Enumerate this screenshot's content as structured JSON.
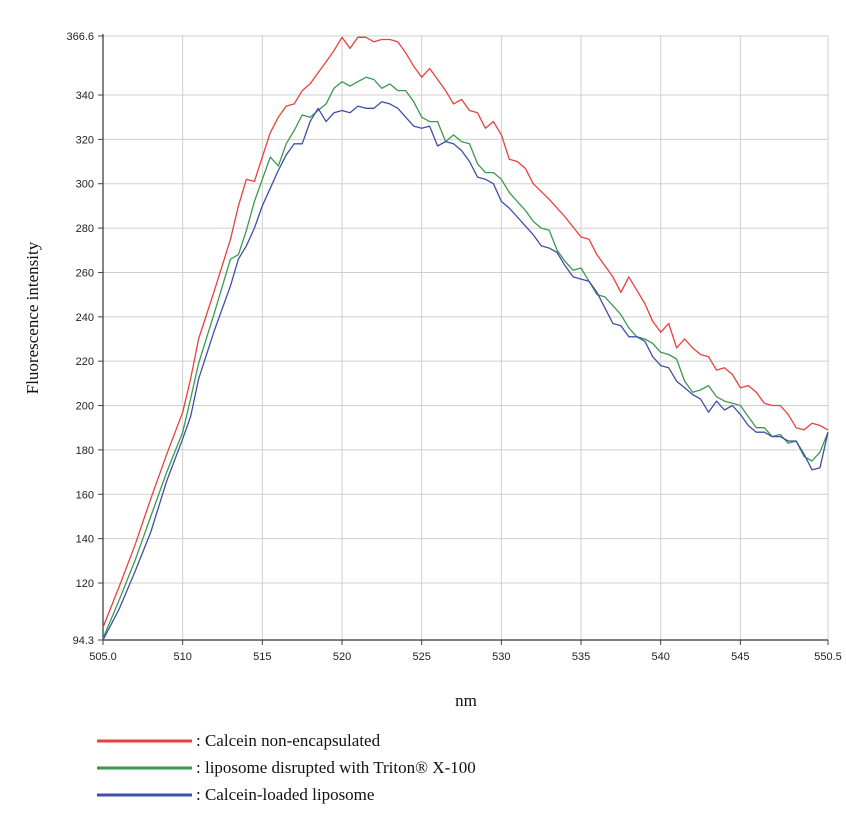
{
  "chart_data": {
    "type": "line",
    "xlabel": "nm",
    "ylabel": "Fluorescence intensity",
    "xlim": [
      505.0,
      550.5
    ],
    "ylim": [
      94.3,
      366.6
    ],
    "x_ticks": [
      {
        "value": 505.0,
        "label": "505.0"
      },
      {
        "value": 510,
        "label": "510"
      },
      {
        "value": 515,
        "label": "515"
      },
      {
        "value": 520,
        "label": "520"
      },
      {
        "value": 525,
        "label": "525"
      },
      {
        "value": 530,
        "label": "530"
      },
      {
        "value": 535,
        "label": "535"
      },
      {
        "value": 540,
        "label": "540"
      },
      {
        "value": 545,
        "label": "545"
      },
      {
        "value": 550.5,
        "label": "550.5"
      }
    ],
    "y_ticks": [
      {
        "value": 94.3,
        "label": "94.3"
      },
      {
        "value": 120,
        "label": "120"
      },
      {
        "value": 140,
        "label": "140"
      },
      {
        "value": 160,
        "label": "160"
      },
      {
        "value": 180,
        "label": "180"
      },
      {
        "value": 200,
        "label": "200"
      },
      {
        "value": 220,
        "label": "220"
      },
      {
        "value": 240,
        "label": "240"
      },
      {
        "value": 260,
        "label": "260"
      },
      {
        "value": 280,
        "label": "280"
      },
      {
        "value": 300,
        "label": "300"
      },
      {
        "value": 320,
        "label": "320"
      },
      {
        "value": 340,
        "label": "340"
      },
      {
        "value": 366.6,
        "label": "366.6"
      }
    ],
    "grid": true,
    "legend_position": "bottom-left",
    "series": [
      {
        "name": ": Calcein non-encapsulated",
        "color": "#e8413c",
        "x": [
          505,
          506,
          507,
          508,
          509,
          510,
          510.5,
          511,
          512,
          513,
          513.5,
          514,
          514.5,
          515,
          515.5,
          516,
          516.5,
          517,
          517.5,
          518,
          518.5,
          519,
          519.5,
          520,
          520.5,
          521,
          521.5,
          522,
          522.5,
          523,
          523.5,
          524,
          524.5,
          525,
          525.5,
          526,
          526.5,
          527,
          527.5,
          528,
          528.5,
          529,
          529.5,
          530,
          530.5,
          531,
          531.5,
          532,
          533,
          534,
          535,
          535.5,
          536,
          536.5,
          537,
          537.5,
          538,
          538.5,
          539,
          539.5,
          540,
          540.5,
          541,
          541.5,
          542,
          542.5,
          543,
          543.5,
          544,
          544.5,
          545,
          545.5,
          546,
          546.5,
          547,
          547.5,
          548,
          548.5,
          549,
          549.5,
          550,
          550.5
        ],
        "y": [
          100,
          118,
          137,
          158,
          178,
          197,
          212,
          230,
          252,
          275,
          290,
          302,
          301,
          312,
          323,
          330,
          335,
          336,
          342,
          345,
          350,
          355,
          360,
          366,
          361,
          366,
          366,
          364,
          365,
          365,
          364,
          359,
          353,
          348,
          352,
          347,
          342,
          336,
          338,
          333,
          332,
          325,
          328,
          322,
          311,
          310,
          307,
          300,
          293,
          285,
          276,
          275,
          268,
          263,
          258,
          251,
          258,
          252,
          246,
          238,
          233,
          237,
          226,
          230,
          226,
          223,
          222,
          216,
          217,
          214,
          208,
          209,
          206,
          201,
          200,
          200,
          196,
          190,
          189,
          192,
          191,
          189
        ]
      },
      {
        "name": ": liposome disrupted with Triton® X-100",
        "color": "#3a9a4e",
        "x": [
          505,
          506,
          507,
          508,
          509,
          510,
          510.5,
          511,
          512,
          513,
          513.5,
          514,
          514.5,
          515,
          515.5,
          516,
          516.5,
          517,
          517.5,
          518,
          518.5,
          519,
          519.5,
          520,
          520.5,
          521,
          521.5,
          522,
          522.5,
          523,
          523.5,
          524,
          524.5,
          525,
          525.5,
          526,
          526.5,
          527,
          527.5,
          528,
          528.5,
          529,
          529.5,
          530,
          530.5,
          531,
          531.5,
          532,
          532.5,
          533,
          533.5,
          534,
          534.5,
          535,
          535.5,
          536,
          536.5,
          537,
          537.5,
          538,
          538.5,
          539,
          539.5,
          540,
          540.5,
          541,
          541.5,
          542,
          542.5,
          543,
          543.5,
          544,
          544.5,
          545,
          545.5,
          546,
          546.5,
          547,
          547.5,
          548,
          548.5,
          549,
          549.5,
          550,
          550.5
        ],
        "y": [
          95,
          112,
          130,
          150,
          170,
          188,
          203,
          219,
          242,
          266,
          268,
          279,
          292,
          302,
          312,
          308,
          318,
          324,
          331,
          330,
          333,
          336,
          343,
          346,
          344,
          346,
          348,
          347,
          343,
          345,
          342,
          342,
          337,
          330,
          328,
          328,
          319,
          322,
          319,
          318,
          309,
          305,
          305,
          302,
          296,
          292,
          288,
          283,
          280,
          279,
          270,
          265,
          261,
          262,
          256,
          250,
          249,
          245,
          241,
          235,
          231,
          230,
          228,
          224,
          223,
          221,
          211,
          206,
          207,
          209,
          204,
          202,
          201,
          200,
          195,
          190,
          190,
          186,
          187,
          183,
          184,
          177,
          175,
          179,
          188
        ]
      },
      {
        "name": ": Calcein-loaded liposome",
        "color": "#3f4fa8",
        "x": [
          505,
          506,
          507,
          508,
          509,
          510,
          510.5,
          511,
          512,
          513,
          513.5,
          514,
          514.5,
          515,
          515.5,
          516,
          516.5,
          517,
          517.5,
          518,
          518.5,
          519,
          519.5,
          520,
          520.5,
          521,
          521.5,
          522,
          522.5,
          523,
          523.5,
          524,
          524.5,
          525,
          525.5,
          526,
          526.5,
          527,
          527.5,
          528,
          528.5,
          529,
          529.5,
          530,
          530.5,
          531,
          531.5,
          532,
          532.5,
          533,
          533.5,
          534,
          534.5,
          535,
          535.5,
          536,
          536.5,
          537,
          537.5,
          538,
          538.5,
          539,
          539.5,
          540,
          540.5,
          541,
          541.5,
          542,
          542.5,
          543,
          543.5,
          544,
          544.5,
          545,
          545.5,
          546,
          546.5,
          547,
          547.5,
          548,
          548.5,
          549,
          549.5,
          550,
          550.5
        ],
        "y": [
          94.3,
          108,
          125,
          143,
          166,
          185,
          195,
          212,
          234,
          254,
          266,
          272,
          280,
          290,
          298,
          306,
          313,
          318,
          318,
          328,
          334,
          328,
          332,
          333,
          332,
          335,
          334,
          334,
          337,
          336,
          334,
          330,
          326,
          325,
          326,
          317,
          319,
          318,
          315,
          310,
          303,
          302,
          300,
          292,
          289,
          285,
          281,
          277,
          272,
          271,
          269,
          263,
          258,
          257,
          256,
          251,
          244,
          237,
          236,
          231,
          231,
          229,
          222,
          218,
          217,
          211,
          208,
          205,
          203,
          197,
          202,
          198,
          200,
          196,
          191,
          188,
          188,
          186,
          186,
          184,
          184,
          178,
          171,
          172,
          188
        ]
      }
    ]
  }
}
